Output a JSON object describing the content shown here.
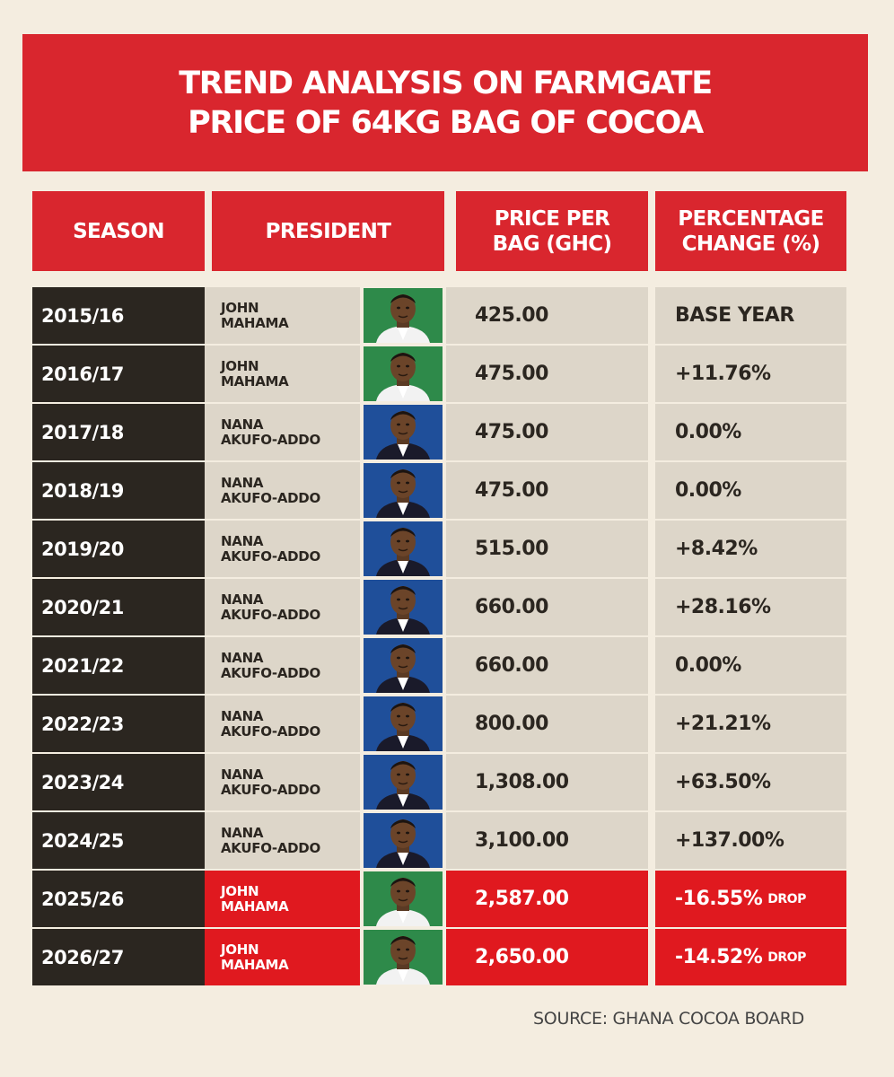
{
  "title": {
    "line1": "TREND ANALYSIS ON FARMGATE",
    "line2": "PRICE OF 64KG BAG OF COCOA"
  },
  "headers": {
    "season": "SEASON",
    "president": "PRESIDENT",
    "price_line1": "PRICE PER",
    "price_line2": "BAG (GHC)",
    "pct_line1": "PERCENTAGE",
    "pct_line2": "CHANGE (%)"
  },
  "colors": {
    "red": "#d9262e",
    "bright_red": "#e0191f",
    "dark": "#2b2620",
    "beige": "#ddd6c9",
    "mahama_bg": "#2e8a4a",
    "akufo_bg": "#1f4f9a"
  },
  "chart_data": {
    "type": "table",
    "columns": [
      "SEASON",
      "PRESIDENT",
      "PRICE PER BAG (GHC)",
      "PERCENTAGE CHANGE (%)"
    ],
    "rows": [
      {
        "season": "2015/16",
        "president": [
          "JOHN",
          "MAHAMA"
        ],
        "price": "425.00",
        "change": "BASE YEAR",
        "drop": "",
        "photo": "mahama-photo-icon",
        "highlight": false
      },
      {
        "season": "2016/17",
        "president": [
          "JOHN",
          "MAHAMA"
        ],
        "price": "475.00",
        "change": "+11.76%",
        "drop": "",
        "photo": "mahama-photo-icon",
        "highlight": false
      },
      {
        "season": "2017/18",
        "president": [
          "NANA",
          "AKUFO-ADDO"
        ],
        "price": "475.00",
        "change": "0.00%",
        "drop": "",
        "photo": "akufo-addo-photo-icon",
        "highlight": false
      },
      {
        "season": "2018/19",
        "president": [
          "NANA",
          "AKUFO-ADDO"
        ],
        "price": "475.00",
        "change": "0.00%",
        "drop": "",
        "photo": "akufo-addo-photo-icon",
        "highlight": false
      },
      {
        "season": "2019/20",
        "president": [
          "NANA",
          "AKUFO-ADDO"
        ],
        "price": "515.00",
        "change": "+8.42%",
        "drop": "",
        "photo": "akufo-addo-photo-icon",
        "highlight": false
      },
      {
        "season": "2020/21",
        "president": [
          "NANA",
          "AKUFO-ADDO"
        ],
        "price": "660.00",
        "change": "+28.16%",
        "drop": "",
        "photo": "akufo-addo-photo-icon",
        "highlight": false
      },
      {
        "season": "2021/22",
        "president": [
          "NANA",
          "AKUFO-ADDO"
        ],
        "price": "660.00",
        "change": "0.00%",
        "drop": "",
        "photo": "akufo-addo-photo-icon",
        "highlight": false
      },
      {
        "season": "2022/23",
        "president": [
          "NANA",
          "AKUFO-ADDO"
        ],
        "price": "800.00",
        "change": "+21.21%",
        "drop": "",
        "photo": "akufo-addo-photo-icon",
        "highlight": false
      },
      {
        "season": "2023/24",
        "president": [
          "NANA",
          "AKUFO-ADDO"
        ],
        "price": "1,308.00",
        "change": "+63.50%",
        "drop": "",
        "photo": "akufo-addo-photo-icon",
        "highlight": false
      },
      {
        "season": "2024/25",
        "president": [
          "NANA",
          "AKUFO-ADDO"
        ],
        "price": "3,100.00",
        "change": "+137.00%",
        "drop": "",
        "photo": "akufo-addo-photo-icon",
        "highlight": false
      },
      {
        "season": "2025/26",
        "president": [
          "JOHN",
          "MAHAMA"
        ],
        "price": "2,587.00",
        "change": "-16.55%",
        "drop": "DROP",
        "photo": "mahama-photo-icon",
        "highlight": true
      },
      {
        "season": "2026/27",
        "president": [
          "JOHN",
          "MAHAMA"
        ],
        "price": "2,650.00",
        "change": "-14.52%",
        "drop": "DROP",
        "photo": "mahama-photo-icon",
        "highlight": true
      }
    ]
  },
  "source": "SOURCE: GHANA COCOA BOARD"
}
